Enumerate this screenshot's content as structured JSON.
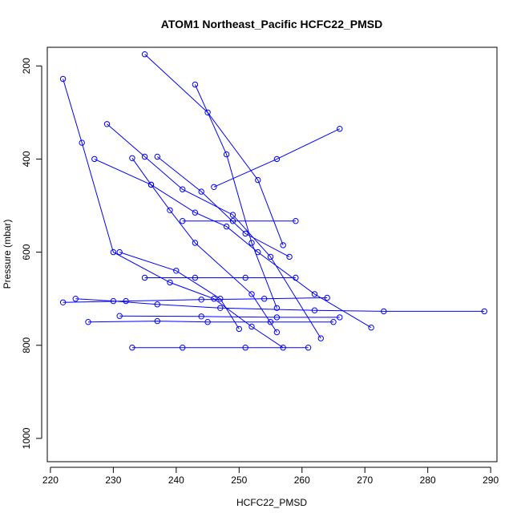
{
  "chart_data": {
    "type": "line",
    "title": "ATOM1 Northeast_Pacific HCFC22_PMSD",
    "xlabel": "HCFC22_PMSD",
    "ylabel": "Pressure (mbar)",
    "xlim": [
      219.5,
      291
    ],
    "ylim": [
      1050,
      160
    ],
    "y_inverted": true,
    "x_ticks": [
      220,
      230,
      240,
      250,
      260,
      270,
      280,
      290
    ],
    "y_ticks": [
      200,
      400,
      600,
      800,
      1000
    ],
    "grid": false,
    "legend": "none",
    "color": "#0000ff",
    "marker": "open-circle",
    "series": [
      {
        "x": [
          227,
          236,
          243,
          248,
          253,
          262,
          271
        ],
        "y": [
          400,
          455,
          515,
          545,
          600,
          690,
          762
        ]
      },
      {
        "x": [
          222,
          225,
          230,
          239,
          246,
          252,
          257
        ],
        "y": [
          228,
          365,
          600,
          665,
          700,
          760,
          805
        ]
      },
      {
        "x": [
          229,
          235,
          241,
          249,
          255,
          263
        ],
        "y": [
          325,
          395,
          465,
          520,
          610,
          785
        ]
      },
      {
        "x": [
          233,
          236,
          239,
          243,
          252,
          256
        ],
        "y": [
          398,
          455,
          510,
          580,
          690,
          772
        ]
      },
      {
        "x": [
          224,
          230,
          237,
          247,
          262,
          273,
          289
        ],
        "y": [
          700,
          705,
          712,
          720,
          725,
          727,
          727
        ]
      },
      {
        "x": [
          226,
          237,
          245,
          255,
          265
        ],
        "y": [
          750,
          748,
          750,
          750,
          750
        ]
      },
      {
        "x": [
          233,
          241,
          251,
          261
        ],
        "y": [
          805,
          805,
          805,
          805
        ]
      },
      {
        "x": [
          222,
          232,
          244,
          254,
          264
        ],
        "y": [
          708,
          705,
          702,
          700,
          698
        ]
      },
      {
        "x": [
          235,
          243,
          251,
          259
        ],
        "y": [
          655,
          655,
          655,
          655
        ]
      },
      {
        "x": [
          231,
          244,
          256,
          266
        ],
        "y": [
          737,
          738,
          740,
          740
        ]
      },
      {
        "x": [
          241,
          249,
          259
        ],
        "y": [
          533,
          533,
          533
        ]
      },
      {
        "x": [
          246,
          256,
          266
        ],
        "y": [
          460,
          400,
          335
        ]
      },
      {
        "x": [
          235,
          245,
          253,
          257
        ],
        "y": [
          175,
          300,
          445,
          585
        ]
      },
      {
        "x": [
          237,
          244,
          251,
          258
        ],
        "y": [
          395,
          470,
          560,
          610
        ]
      },
      {
        "x": [
          243,
          248,
          252,
          256
        ],
        "y": [
          240,
          390,
          580,
          720
        ]
      },
      {
        "x": [
          231,
          240,
          247,
          250
        ],
        "y": [
          600,
          640,
          700,
          765
        ]
      }
    ]
  }
}
